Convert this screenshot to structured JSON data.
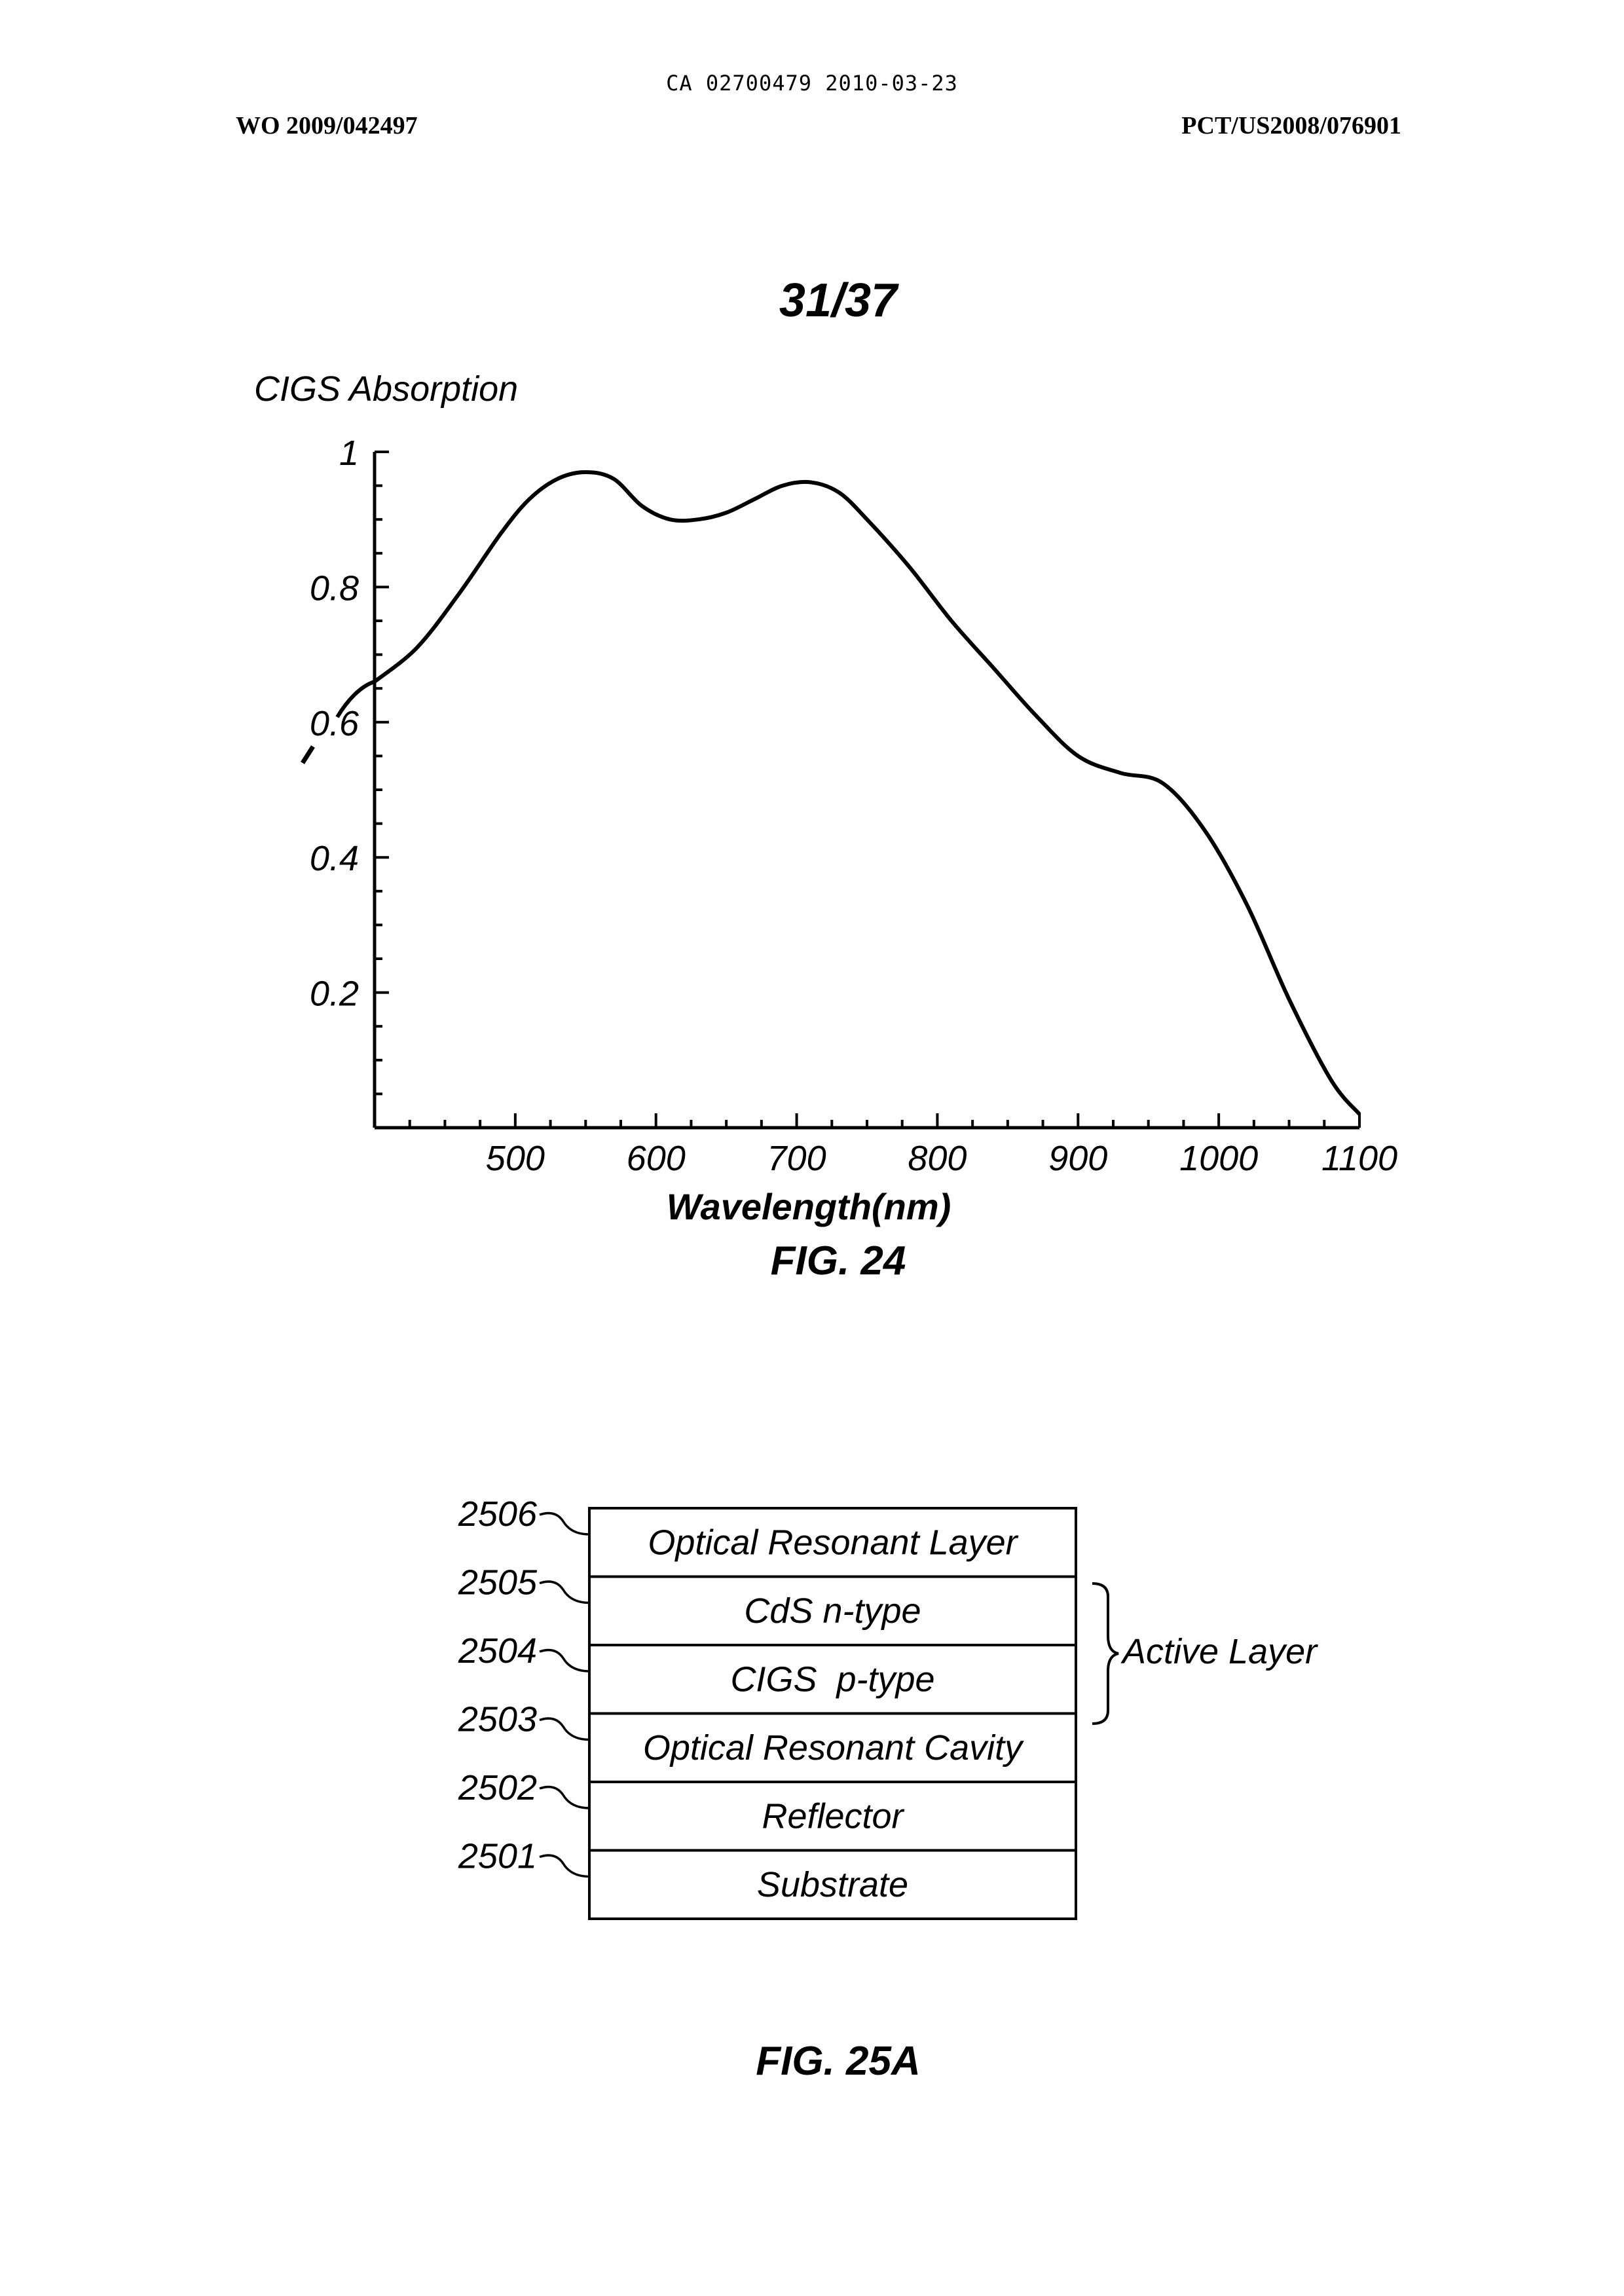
{
  "header": {
    "doc_id": "CA 02700479 2010-03-23",
    "left": "WO 2009/042497",
    "right": "PCT/US2008/076901"
  },
  "sheet_number": "31/37",
  "fig24": {
    "caption": "FIG. 24",
    "chart_data": {
      "type": "line",
      "title": "",
      "ylabel": "CIGS Absorption",
      "xlabel": "Wavelength(nm)",
      "xlim": [
        400,
        1100
      ],
      "ylim": [
        0,
        1
      ],
      "xticks": [
        "500",
        "600",
        "700",
        "800",
        "900",
        "1000",
        "1100"
      ],
      "yticks": [
        "1",
        "0.8",
        "0.6",
        "0.4",
        "0.2"
      ],
      "grid": false,
      "series": [
        {
          "x": [
            400,
            430,
            460,
            490,
            510,
            530,
            550,
            570,
            590,
            610,
            630,
            650,
            670,
            690,
            710,
            730,
            750,
            780,
            810,
            840,
            870,
            900,
            930,
            960,
            990,
            1020,
            1050,
            1080,
            1100
          ],
          "y": [
            0.66,
            0.71,
            0.79,
            0.88,
            0.93,
            0.96,
            0.97,
            0.96,
            0.92,
            0.9,
            0.9,
            0.91,
            0.93,
            0.95,
            0.955,
            0.94,
            0.9,
            0.83,
            0.75,
            0.68,
            0.61,
            0.55,
            0.525,
            0.51,
            0.44,
            0.33,
            0.19,
            0.07,
            0.02
          ]
        }
      ]
    }
  },
  "fig25": {
    "caption": "FIG. 25A",
    "layers": [
      {
        "ref": "2506",
        "label": "Optical Resonant Layer"
      },
      {
        "ref": "2505",
        "label": "CdS n-type"
      },
      {
        "ref": "2504",
        "label": "CIGS  p-type"
      },
      {
        "ref": "2503",
        "label": "Optical Resonant Cavity"
      },
      {
        "ref": "2502",
        "label": "Reflector"
      },
      {
        "ref": "2501",
        "label": "Substrate"
      }
    ],
    "bracket_label": "Active Layer"
  }
}
